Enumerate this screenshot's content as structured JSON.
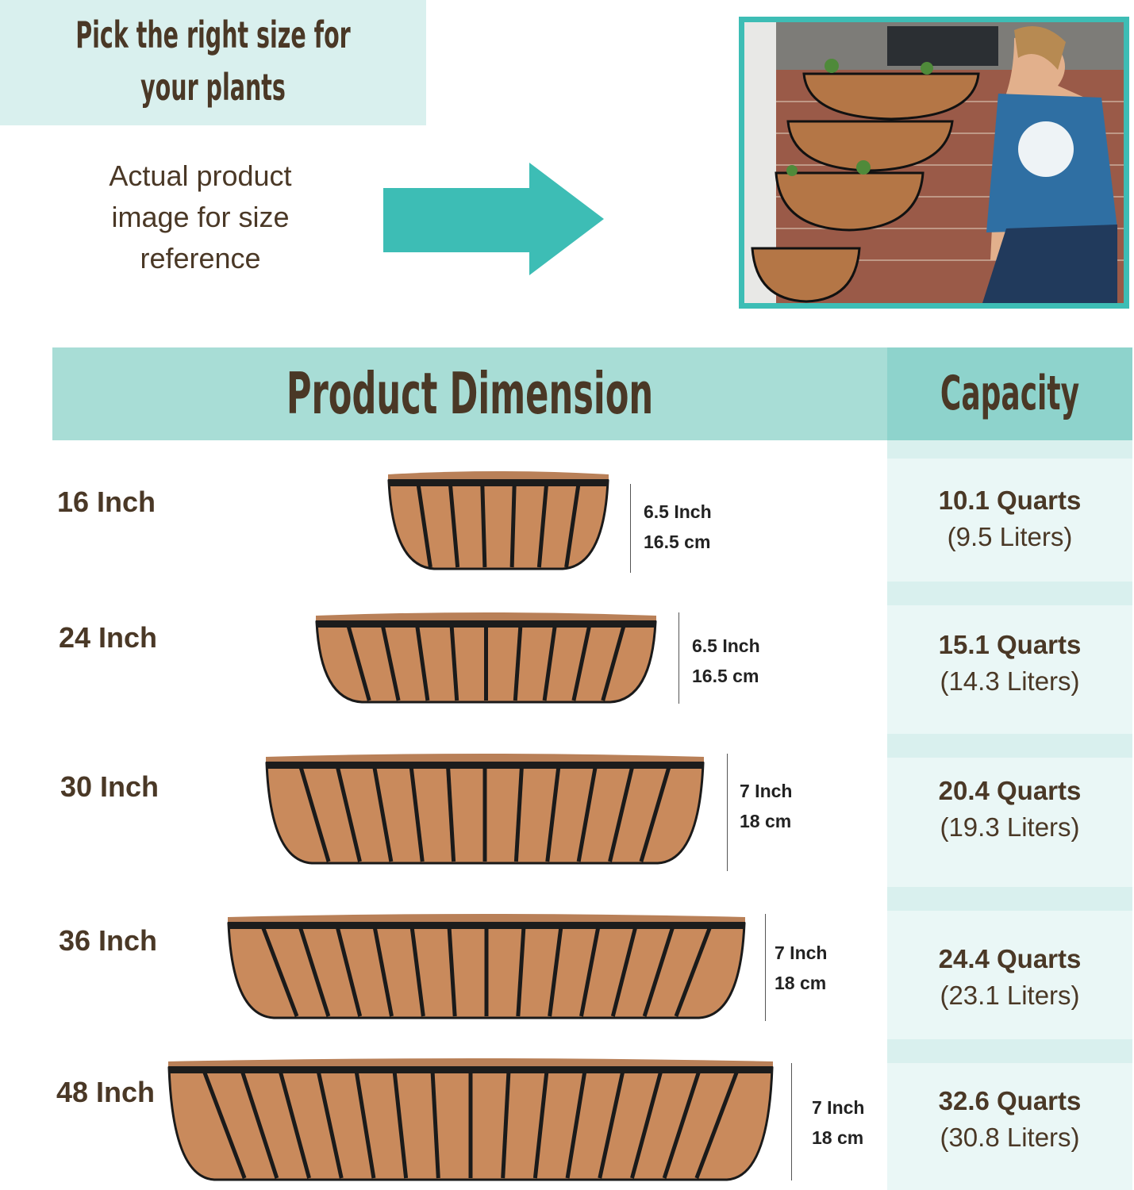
{
  "header": {
    "title_line1": "Pick the right size for",
    "title_line2": "your plants",
    "subtitle_lines": [
      "Actual product",
      "image for size",
      "reference"
    ]
  },
  "arrow": {
    "icon": "right-arrow-icon",
    "color": "#3dbdb5"
  },
  "photo": {
    "description_icon": "lifestyle-photo",
    "border_color": "#3dbdb5"
  },
  "table": {
    "dimension_header": "Product Dimension",
    "capacity_header": "Capacity",
    "rows": [
      {
        "size": "16 Inch",
        "height_in": "6.5 Inch",
        "height_cm": "16.5 cm",
        "quarts": "10.1 Quarts",
        "liters": "(9.5 Liters)"
      },
      {
        "size": "24 Inch",
        "height_in": "6.5 Inch",
        "height_cm": "16.5 cm",
        "quarts": "15.1 Quarts",
        "liters": "(14.3 Liters)"
      },
      {
        "size": "30 Inch",
        "height_in": "7 Inch",
        "height_cm": "18 cm",
        "quarts": "20.4 Quarts",
        "liters": "(19.3 Liters)"
      },
      {
        "size": "36 Inch",
        "height_in": "7 Inch",
        "height_cm": "18 cm",
        "quarts": "24.4 Quarts",
        "liters": "(23.1 Liters)"
      },
      {
        "size": "48 Inch",
        "height_in": "7 Inch",
        "height_cm": "18 cm",
        "quarts": "32.6 Quarts",
        "liters": "(30.8 Liters)"
      }
    ]
  },
  "colors": {
    "teal_light": "#d9f0ee",
    "teal_header": "#a8ddd6",
    "teal_dark": "#8ed3cc",
    "text_brown": "#4a3826",
    "coir": "#c98a5c"
  }
}
